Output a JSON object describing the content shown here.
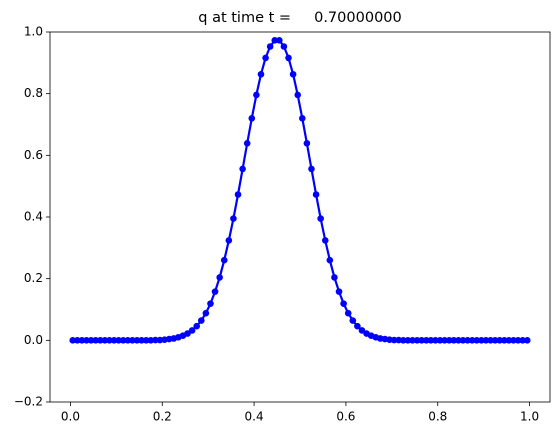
{
  "chart_data": {
    "type": "line",
    "title": "q at time t =     0.70000000",
    "x": [
      0.005,
      0.015,
      0.025,
      0.035,
      0.045,
      0.055,
      0.065,
      0.075,
      0.085,
      0.095,
      0.105,
      0.115,
      0.125,
      0.135,
      0.145,
      0.155,
      0.165,
      0.175,
      0.185,
      0.195,
      0.205,
      0.215,
      0.225,
      0.235,
      0.245,
      0.255,
      0.265,
      0.275,
      0.285,
      0.295,
      0.305,
      0.315,
      0.325,
      0.335,
      0.345,
      0.355,
      0.365,
      0.375,
      0.385,
      0.395,
      0.405,
      0.415,
      0.425,
      0.435,
      0.445,
      0.455,
      0.465,
      0.475,
      0.485,
      0.495,
      0.505,
      0.515,
      0.525,
      0.535,
      0.545,
      0.555,
      0.565,
      0.575,
      0.585,
      0.595,
      0.605,
      0.615,
      0.625,
      0.635,
      0.645,
      0.655,
      0.665,
      0.675,
      0.685,
      0.695,
      0.705,
      0.715,
      0.725,
      0.735,
      0.745,
      0.755,
      0.765,
      0.775,
      0.785,
      0.795,
      0.805,
      0.815,
      0.825,
      0.835,
      0.845,
      0.855,
      0.865,
      0.875,
      0.885,
      0.895,
      0.905,
      0.915,
      0.925,
      0.935,
      0.945,
      0.955,
      0.965,
      0.975,
      0.985,
      0.995
    ],
    "values": [
      0,
      0,
      0,
      0,
      0,
      0,
      0,
      0,
      0,
      0,
      0,
      0,
      0,
      0,
      0,
      0,
      0,
      0,
      0.001,
      0.001,
      0.002,
      0.004,
      0.006,
      0.01,
      0.015,
      0.022,
      0.032,
      0.046,
      0.064,
      0.088,
      0.119,
      0.158,
      0.204,
      0.26,
      0.324,
      0.395,
      0.473,
      0.556,
      0.639,
      0.72,
      0.796,
      0.863,
      0.916,
      0.953,
      0.973,
      0.973,
      0.953,
      0.916,
      0.863,
      0.796,
      0.72,
      0.639,
      0.556,
      0.473,
      0.395,
      0.324,
      0.26,
      0.204,
      0.158,
      0.119,
      0.088,
      0.064,
      0.046,
      0.032,
      0.022,
      0.015,
      0.01,
      0.006,
      0.004,
      0.002,
      0.001,
      0.001,
      0,
      0,
      0,
      0,
      0,
      0,
      0,
      0,
      0,
      0,
      0,
      0,
      0,
      0,
      0,
      0,
      0,
      0,
      0,
      0,
      0,
      0,
      0,
      0,
      0,
      0,
      0,
      0
    ],
    "color": "#0000ff",
    "xlim": [
      -0.0445,
      1.0445
    ],
    "ylim": [
      -0.2,
      1.0
    ],
    "xticks": [
      {
        "value": 0,
        "label": "0.0"
      },
      0.2,
      0.4,
      0.6,
      0.8,
      {
        "value": 1,
        "label": "1.0"
      }
    ],
    "yticks": [
      {
        "value": -0.2,
        "label": "−0.2"
      },
      {
        "value": 0,
        "label": "0.0"
      },
      0.2,
      0.4,
      0.6,
      0.8,
      {
        "value": 1,
        "label": "1.0"
      }
    ]
  }
}
